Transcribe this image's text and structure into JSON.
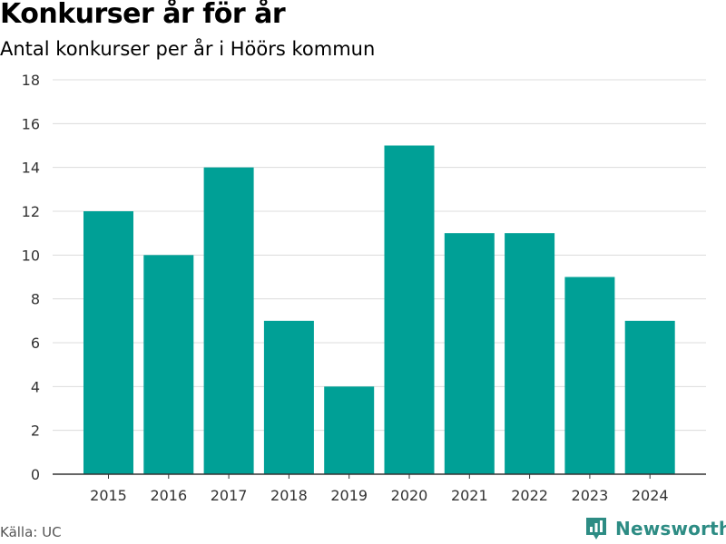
{
  "chart_data": {
    "type": "bar",
    "title": "Konkurser år för år",
    "subtitle": "Antal konkurser per år i Höörs kommun",
    "categories": [
      "2015",
      "2016",
      "2017",
      "2018",
      "2019",
      "2020",
      "2021",
      "2022",
      "2023",
      "2024"
    ],
    "values": [
      12,
      10,
      14,
      7,
      4,
      15,
      11,
      11,
      9,
      7
    ],
    "xlabel": "",
    "ylabel": "",
    "ylim": [
      0,
      18
    ],
    "yticks": [
      0,
      2,
      4,
      6,
      8,
      10,
      12,
      14,
      16,
      18
    ],
    "grid": true,
    "bar_color": "#00a096"
  },
  "footer": {
    "source": "Källa: UC",
    "brand": "Newsworthy",
    "brand_icon": "newsworthy-logo-icon",
    "brand_color": "#2d8c84"
  }
}
